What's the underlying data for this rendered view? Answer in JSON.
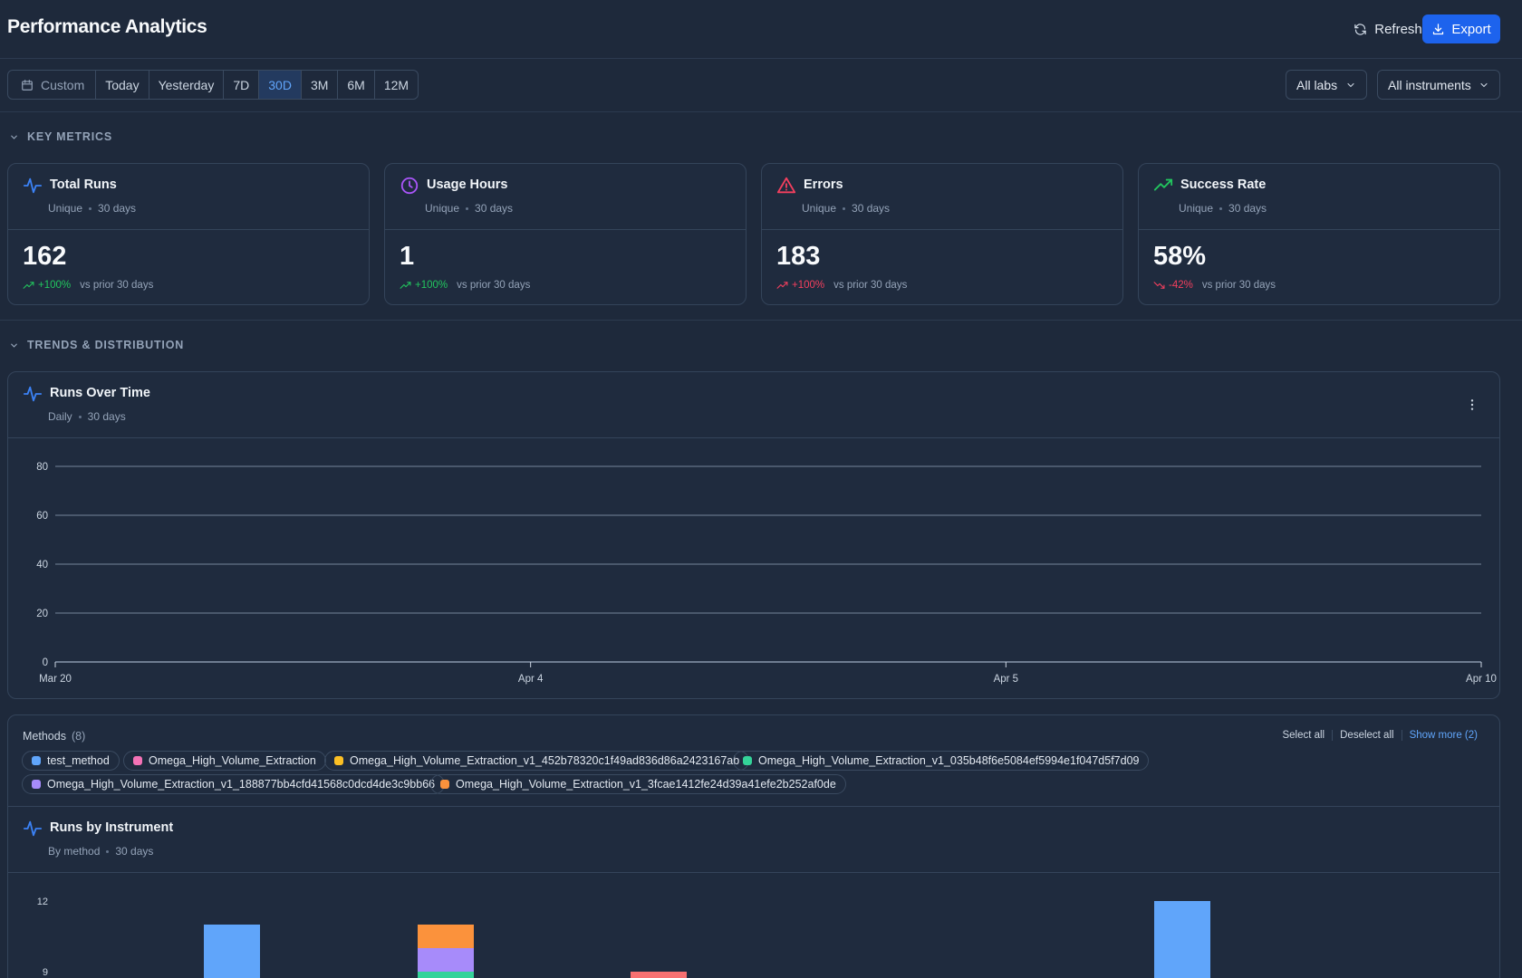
{
  "header": {
    "title": "Performance Analytics",
    "refresh_label": "Refresh",
    "export_label": "Export"
  },
  "filters": {
    "ranges": [
      "Custom",
      "Today",
      "Yesterday",
      "7D",
      "30D",
      "3M",
      "6M",
      "12M"
    ],
    "active_range": "30D",
    "labs_select": "All labs",
    "instruments_select": "All instruments"
  },
  "sections": {
    "key_metrics": "KEY METRICS",
    "trends": "TRENDS & DISTRIBUTION"
  },
  "metrics": [
    {
      "title": "Total Runs",
      "sub_a": "Unique",
      "sub_b": "30 days",
      "value": "162",
      "delta": "+100%",
      "delta_dir": "up",
      "compare": "vs prior 30 days",
      "icon": "activity-icon",
      "color": "#3b82f6"
    },
    {
      "title": "Usage Hours",
      "sub_a": "Unique",
      "sub_b": "30 days",
      "value": "1",
      "delta": "+100%",
      "delta_dir": "up",
      "compare": "vs prior 30 days",
      "icon": "clock-icon",
      "color": "#a855f7"
    },
    {
      "title": "Errors",
      "sub_a": "Unique",
      "sub_b": "30 days",
      "value": "183",
      "delta": "+100%",
      "delta_dir": "up-bad",
      "compare": "vs prior 30 days",
      "icon": "alert-triangle-icon",
      "color": "#f43f5e"
    },
    {
      "title": "Success Rate",
      "sub_a": "Unique",
      "sub_b": "30 days",
      "value": "58%",
      "delta": "-42%",
      "delta_dir": "down",
      "compare": "vs prior 30 days",
      "icon": "trending-up-icon",
      "color": "#22c55e"
    }
  ],
  "runs_over_time": {
    "title": "Runs Over Time",
    "sub_a": "Daily",
    "sub_b": "30 days"
  },
  "chart_data": [
    {
      "type": "line",
      "title": "Runs Over Time",
      "x": [
        "Mar 20",
        "Apr 4",
        "Apr 5",
        "Apr 10"
      ],
      "xlabel": "",
      "ylabel": "",
      "yticks": [
        0,
        20,
        40,
        60,
        80
      ],
      "ylim": [
        0,
        80
      ],
      "grid": true
    },
    {
      "type": "bar",
      "title": "Runs by Instrument",
      "yticks": [
        9,
        12
      ],
      "series": [
        {
          "color": "#60a5fa",
          "values": [
            11,
            0,
            0,
            0,
            12
          ]
        },
        {
          "color": "#34d399",
          "values": [
            0,
            9,
            0,
            0,
            0
          ]
        },
        {
          "color": "#a78bfa",
          "values": [
            0,
            1,
            0,
            0,
            0
          ]
        },
        {
          "color": "#fb923c",
          "values": [
            0,
            1,
            0,
            0,
            0
          ]
        },
        {
          "color": "#f87171",
          "values": [
            0,
            0,
            9,
            0,
            0
          ]
        }
      ]
    }
  ],
  "methods": {
    "label": "Methods",
    "count": "(8)",
    "select_all": "Select all",
    "deselect_all": "Deselect all",
    "show_more": "Show more (2)",
    "items": [
      {
        "name": "test_method",
        "color": "#60a5fa"
      },
      {
        "name": "Omega_High_Volume_Extraction",
        "color": "#f472b6"
      },
      {
        "name": "Omega_High_Volume_Extraction_v1_452b78320c1f49ad836d86a2423167ab",
        "color": "#fbbf24"
      },
      {
        "name": "Omega_High_Volume_Extraction_v1_035b48f6e5084ef5994e1f047d5f7d09",
        "color": "#34d399"
      },
      {
        "name": "Omega_High_Volume_Extraction_v1_188877bb4cfd41568c0dcd4de3c9bb66",
        "color": "#a78bfa"
      },
      {
        "name": "Omega_High_Volume_Extraction_v1_3fcae1412fe24d39a41efe2b252af0de",
        "color": "#fb923c"
      }
    ]
  },
  "runs_by_instrument": {
    "title": "Runs by Instrument",
    "sub_a": "By method",
    "sub_b": "30 days"
  }
}
